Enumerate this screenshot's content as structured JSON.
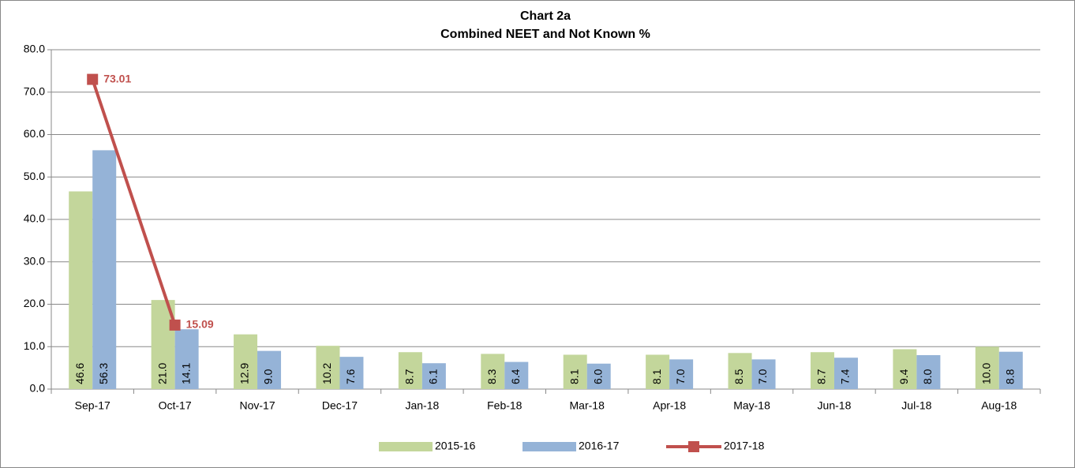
{
  "chart_data": {
    "type": "bar",
    "title": "Chart 2a",
    "subtitle": "Combined NEET and Not Known %",
    "categories": [
      "Sep-17",
      "Oct-17",
      "Nov-17",
      "Dec-17",
      "Jan-18",
      "Feb-18",
      "Mar-18",
      "Apr-18",
      "May-18",
      "Jun-18",
      "Jul-18",
      "Aug-18"
    ],
    "series": [
      {
        "name": "2015-16",
        "type": "bar",
        "color": "#c3d69b",
        "values": [
          46.6,
          21.0,
          12.9,
          10.2,
          8.7,
          8.3,
          8.1,
          8.1,
          8.5,
          8.7,
          9.4,
          10.0
        ],
        "value_labels": [
          "46.6",
          "21.0",
          "12.9",
          "10.2",
          "8.7",
          "8.3",
          "8.1",
          "8.1",
          "8.5",
          "8.7",
          "9.4",
          "10.0"
        ]
      },
      {
        "name": "2016-17",
        "type": "bar",
        "color": "#95b3d7",
        "values": [
          56.3,
          14.1,
          9.0,
          7.6,
          6.1,
          6.4,
          6.0,
          7.0,
          7.0,
          7.4,
          8.0,
          8.8
        ],
        "value_labels": [
          "56.3",
          "14.1",
          "9.0",
          "7.6",
          "6.1",
          "6.4",
          "6.0",
          "7.0",
          "7.0",
          "7.4",
          "8.0",
          "8.8"
        ]
      },
      {
        "name": "2017-18",
        "type": "line",
        "color": "#c0504d",
        "values": [
          73.01,
          15.09,
          null,
          null,
          null,
          null,
          null,
          null,
          null,
          null,
          null,
          null
        ]
      }
    ],
    "ylim": [
      0,
      80
    ],
    "yticks": [
      {
        "value": 0,
        "label": "0.0"
      },
      {
        "value": 10,
        "label": "10.0"
      },
      {
        "value": 20,
        "label": "20.0"
      },
      {
        "value": 30,
        "label": "30.0"
      },
      {
        "value": 40,
        "label": "40.0"
      },
      {
        "value": 50,
        "label": "50.0"
      },
      {
        "value": 60,
        "label": "60.0"
      },
      {
        "value": 70,
        "label": "70.0"
      },
      {
        "value": 80,
        "label": "80.0"
      }
    ],
    "grid": true,
    "legend": "bottom"
  }
}
